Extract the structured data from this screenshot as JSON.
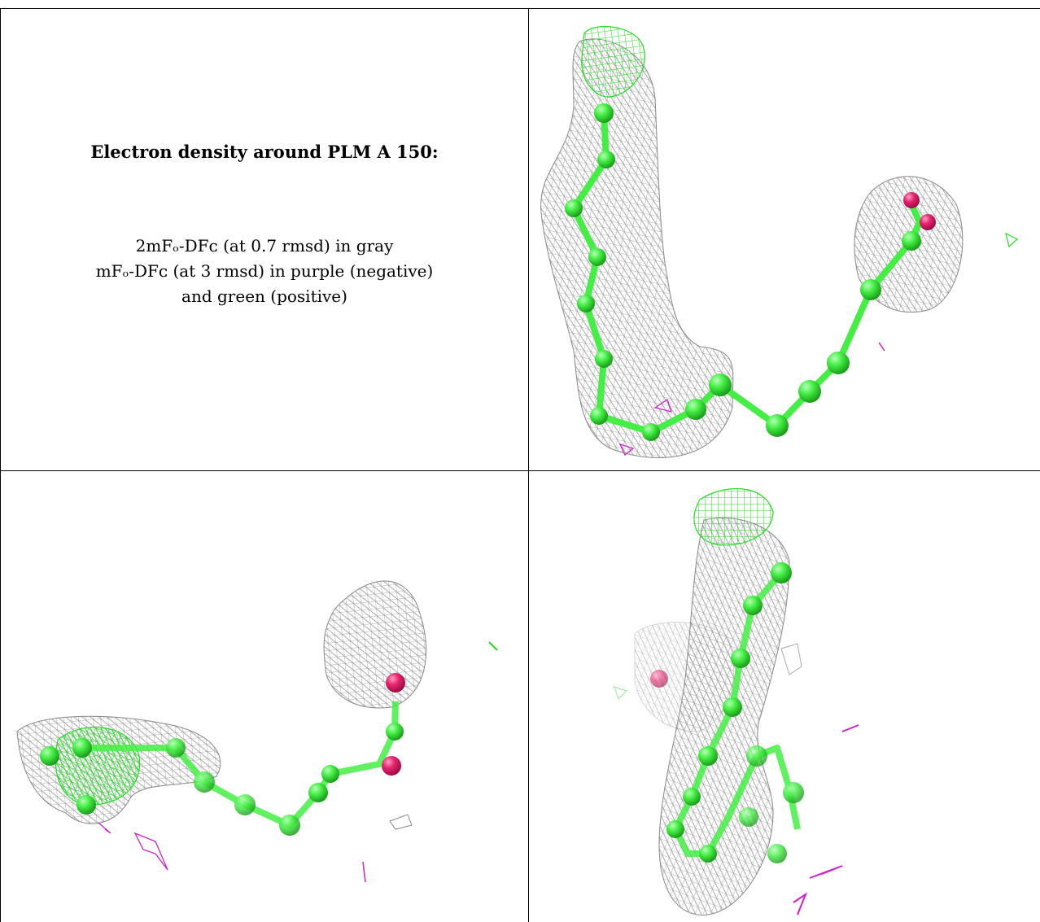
{
  "caption": {
    "title": "Electron density around PLM A 150:",
    "line1": "2mFₒ-DFᴄ (at 0.7 rmsd) in gray",
    "line2": "mFₒ-DFᴄ (at 3 rmsd) in purple (negative)",
    "line3": "and green (positive)"
  },
  "colors": {
    "density_2fofc": "#8c8c8c",
    "positive_difference": "#22dd22",
    "negative_difference": "#cc22cc",
    "carbon_atom": "#44ee44",
    "oxygen_atom": "#e8236e"
  },
  "panels": [
    {
      "view": "view-1"
    },
    {
      "view": "view-2"
    },
    {
      "view": "view-3"
    }
  ]
}
